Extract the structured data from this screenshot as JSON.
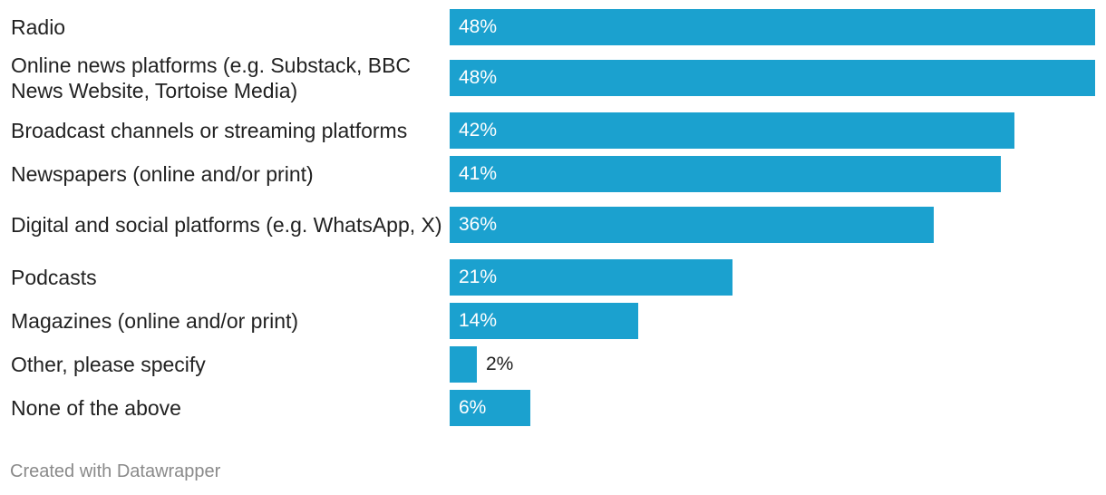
{
  "chart_data": {
    "type": "bar",
    "orientation": "horizontal",
    "categories": [
      "Radio",
      "Online news platforms (e.g. Substack, BBC News Website, Tortoise Media)",
      "Broadcast channels or streaming platforms",
      "Newspapers (online and/or print)",
      "Digital and social platforms (e.g. WhatsApp, X)",
      "Podcasts",
      "Magazines (online and/or print)",
      "Other, please specify",
      "None of the above"
    ],
    "values": [
      48,
      48,
      42,
      41,
      36,
      21,
      14,
      2,
      6
    ],
    "value_labels": [
      "48%",
      "48%",
      "42%",
      "41%",
      "36%",
      "21%",
      "14%",
      "2%",
      "6%"
    ],
    "unit": "%",
    "xlim": [
      0,
      48
    ],
    "bar_color": "#1ba1cf",
    "title": "",
    "xlabel": "",
    "ylabel": ""
  },
  "footer": {
    "credit": "Created with Datawrapper"
  }
}
